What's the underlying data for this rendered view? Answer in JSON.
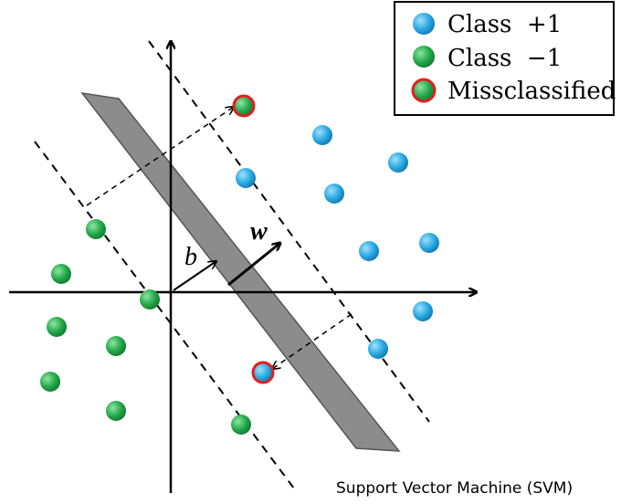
{
  "legend": {
    "items": [
      {
        "label": "Class  +1",
        "color": "#29a8e0"
      },
      {
        "label": "Class  −1",
        "color": "#22a84a"
      },
      {
        "label": "Missclassified",
        "color": "#e02020"
      }
    ]
  },
  "labels": {
    "b": "b",
    "w": "w"
  },
  "caption": "Support Vector Machine (SVM)",
  "colors": {
    "positive": "#29a8e0",
    "negative": "#22a84a",
    "misclassified_ring": "#e02020",
    "hyperplane_band": "#8c8c8c"
  }
}
